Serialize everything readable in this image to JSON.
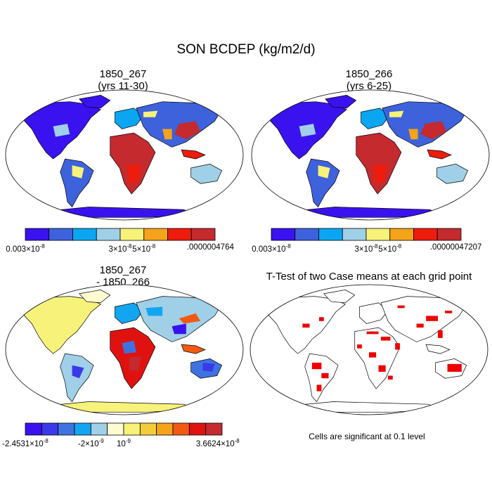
{
  "figure": {
    "title": "SON BCDEP (kg/m2/d)"
  },
  "panels": [
    {
      "id": "case1",
      "title_line1": "1850_267",
      "title_line2": "(yrs 11-30)"
    },
    {
      "id": "case2",
      "title_line1": "1850_266",
      "title_line2": "(yrs 6-25)"
    },
    {
      "id": "diff",
      "title_line1": "1850_267",
      "title_line2": "- 1850_266"
    },
    {
      "id": "ttest",
      "title_line1": "T-Test of two Case means at each grid point",
      "title_line2": ""
    }
  ],
  "colorbars": {
    "case1": {
      "colors": [
        "#3a12f0",
        "#3e62dc",
        "#0aa6f2",
        "#9fd0e8",
        "#f7f27a",
        "#f4a31a",
        "#ee1c0c",
        "#c42a2e"
      ],
      "labels": [
        {
          "text": "0.003×10",
          "exp": "-8",
          "at": 0
        },
        {
          "text": "3×10",
          "exp": "-8",
          "at": 4
        },
        {
          "text": "5×10",
          "exp": "-8",
          "at": 5
        },
        {
          "text": ".0000004764",
          "exp": "",
          "at": 8
        }
      ]
    },
    "case2": {
      "colors": [
        "#3a12f0",
        "#3e62dc",
        "#0aa6f2",
        "#9fd0e8",
        "#f7f27a",
        "#f4a31a",
        "#ee1c0c",
        "#c42a2e"
      ],
      "labels": [
        {
          "text": "0.003×10",
          "exp": "-8",
          "at": 0
        },
        {
          "text": "3×10",
          "exp": "-8",
          "at": 4
        },
        {
          "text": "5×10",
          "exp": "-8",
          "at": 5
        },
        {
          "text": ".00000047207",
          "exp": "",
          "at": 8
        }
      ]
    },
    "diff": {
      "colors": [
        "#3a12f0",
        "#3a3ae8",
        "#3e72e0",
        "#12a6f2",
        "#9fd0e8",
        "#fdfbd0",
        "#f7f27a",
        "#f2cd3a",
        "#f4a31a",
        "#f25a14",
        "#e01210",
        "#c42a2e"
      ],
      "labels": [
        {
          "text": "-2.4531×10",
          "exp": "-8",
          "at": 0
        },
        {
          "text": "-2×10",
          "exp": "-9",
          "at": 4
        },
        {
          "text": "10",
          "exp": "-9",
          "at": 6
        },
        {
          "text": "3.6624×10",
          "exp": "-8",
          "at": 12
        }
      ]
    }
  },
  "ttest_note": "Cells are significant at 0.1 level",
  "map_colors": {
    "ocean": "#ffffff",
    "outline": "#000000",
    "significant": "#ee0000"
  }
}
